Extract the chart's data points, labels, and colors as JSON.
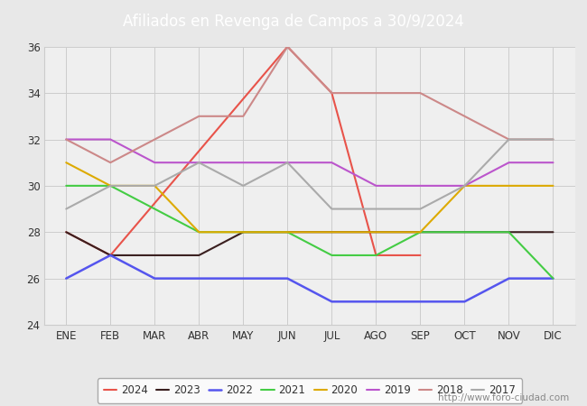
{
  "title": "Afiliados en Revenga de Campos a 30/9/2024",
  "title_color": "#ffffff",
  "title_bg_color": "#5b8dd9",
  "months": [
    "ENE",
    "FEB",
    "MAR",
    "ABR",
    "MAY",
    "JUN",
    "JUL",
    "AGO",
    "SEP",
    "OCT",
    "NOV",
    "DIC"
  ],
  "ylim": [
    24,
    36
  ],
  "yticks": [
    24,
    26,
    28,
    30,
    32,
    34,
    36
  ],
  "series": {
    "2024": {
      "data": [
        28,
        27,
        null,
        null,
        null,
        36,
        34,
        27,
        27,
        null,
        null,
        null
      ],
      "color": "#e8534a",
      "linewidth": 1.5
    },
    "2023": {
      "data": [
        28,
        27,
        27,
        27,
        28,
        28,
        28,
        28,
        28,
        28,
        28,
        28
      ],
      "color": "#3a1f1f",
      "linewidth": 1.5
    },
    "2022": {
      "data": [
        26,
        27,
        26,
        26,
        26,
        26,
        25,
        25,
        25,
        25,
        26,
        26
      ],
      "color": "#5555ee",
      "linewidth": 1.8
    },
    "2021": {
      "data": [
        30,
        30,
        29,
        28,
        28,
        28,
        27,
        27,
        28,
        28,
        28,
        26
      ],
      "color": "#44cc44",
      "linewidth": 1.5
    },
    "2020": {
      "data": [
        31,
        30,
        30,
        28,
        28,
        28,
        28,
        28,
        28,
        30,
        30,
        30
      ],
      "color": "#ddaa00",
      "linewidth": 1.5
    },
    "2019": {
      "data": [
        32,
        32,
        31,
        31,
        31,
        31,
        31,
        30,
        30,
        30,
        31,
        31
      ],
      "color": "#bb55cc",
      "linewidth": 1.5
    },
    "2018": {
      "data": [
        32,
        31,
        32,
        33,
        33,
        36,
        34,
        34,
        34,
        33,
        32,
        32
      ],
      "color": "#cc8888",
      "linewidth": 1.5
    },
    "2017": {
      "data": [
        29,
        30,
        30,
        31,
        30,
        31,
        29,
        29,
        29,
        30,
        32,
        32
      ],
      "color": "#aaaaaa",
      "linewidth": 1.5
    }
  },
  "grid_color": "#cccccc",
  "plot_bg_color": "#efefef",
  "outer_bg_color": "#e8e8e8",
  "footer_text": "http://www.foro-ciudad.com",
  "footer_color": "#888888"
}
